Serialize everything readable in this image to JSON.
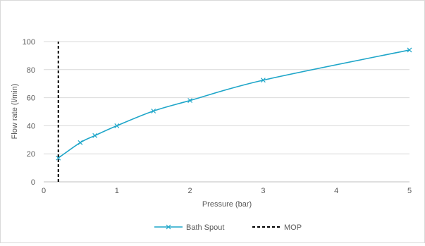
{
  "chart_data": {
    "type": "line",
    "xlabel": "Pressure (bar)",
    "ylabel": "Flow rate (l/min)",
    "xlim": [
      0,
      5
    ],
    "ylim": [
      0,
      100
    ],
    "x_ticks": [
      "0",
      "1",
      "2",
      "3",
      "4",
      "5"
    ],
    "y_ticks": [
      "0",
      "20",
      "40",
      "60",
      "80",
      "100"
    ],
    "grid": "horizontal",
    "legend_position": "bottom",
    "series": [
      {
        "name": "Bath Spout",
        "color": "#1fa6c9",
        "marker": "x",
        "smooth": true,
        "x": [
          0.2,
          0.5,
          0.7,
          1.0,
          1.5,
          2.0,
          3.0,
          5.0
        ],
        "y": [
          17,
          28,
          33,
          40,
          50.5,
          58,
          72.5,
          94
        ]
      },
      {
        "name": "MOP",
        "color": "#000000",
        "style": "dashed",
        "x": [
          0.2,
          0.2
        ],
        "y": [
          0,
          100
        ]
      }
    ]
  }
}
